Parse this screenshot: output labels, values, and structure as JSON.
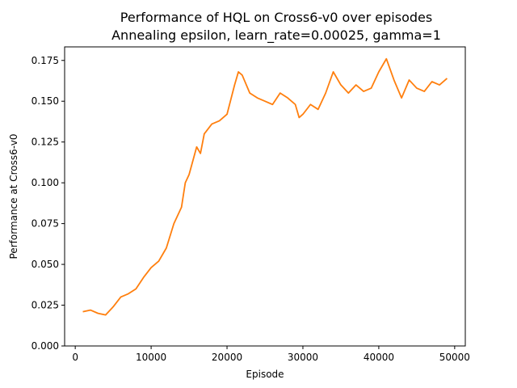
{
  "chart_data": {
    "type": "line",
    "title": "Performance of HQL on Cross6-v0 over episodes",
    "subtitle": "Annealing epsilon, learn_rate=0.00025, gamma=1",
    "xlabel": "Episode",
    "ylabel": "Performance at Cross6-v0",
    "xlim": [
      -1400,
      51400
    ],
    "ylim": [
      0.0,
      0.1833
    ],
    "xticks": [
      0,
      10000,
      20000,
      30000,
      40000,
      50000
    ],
    "xtick_labels": [
      "0",
      "10000",
      "20000",
      "30000",
      "40000",
      "50000"
    ],
    "yticks": [
      0.0,
      0.025,
      0.05,
      0.075,
      0.1,
      0.125,
      0.15,
      0.175
    ],
    "ytick_labels": [
      "0.000",
      "0.025",
      "0.050",
      "0.075",
      "0.100",
      "0.125",
      "0.150",
      "0.175"
    ],
    "grid": false,
    "series": [
      {
        "color": "#ff7f0e",
        "x": [
          1000,
          2000,
          3000,
          4000,
          5000,
          6000,
          7000,
          8000,
          9000,
          10000,
          11000,
          12000,
          13000,
          14000,
          14500,
          15000,
          16000,
          16500,
          17000,
          18000,
          19000,
          20000,
          21000,
          21500,
          22000,
          23000,
          24000,
          25000,
          26000,
          27000,
          28000,
          29000,
          29500,
          30000,
          31000,
          32000,
          33000,
          34000,
          35000,
          36000,
          37000,
          38000,
          39000,
          40000,
          41000,
          42000,
          43000,
          44000,
          45000,
          46000,
          47000,
          48000,
          49000
        ],
        "y": [
          0.021,
          0.022,
          0.02,
          0.019,
          0.024,
          0.03,
          0.032,
          0.035,
          0.042,
          0.048,
          0.052,
          0.06,
          0.075,
          0.085,
          0.1,
          0.105,
          0.122,
          0.118,
          0.13,
          0.136,
          0.138,
          0.142,
          0.16,
          0.168,
          0.166,
          0.155,
          0.152,
          0.15,
          0.148,
          0.155,
          0.152,
          0.148,
          0.14,
          0.142,
          0.148,
          0.145,
          0.155,
          0.168,
          0.16,
          0.155,
          0.16,
          0.156,
          0.158,
          0.168,
          0.176,
          0.163,
          0.152,
          0.163,
          0.158,
          0.156,
          0.162,
          0.16,
          0.164
        ]
      }
    ]
  }
}
